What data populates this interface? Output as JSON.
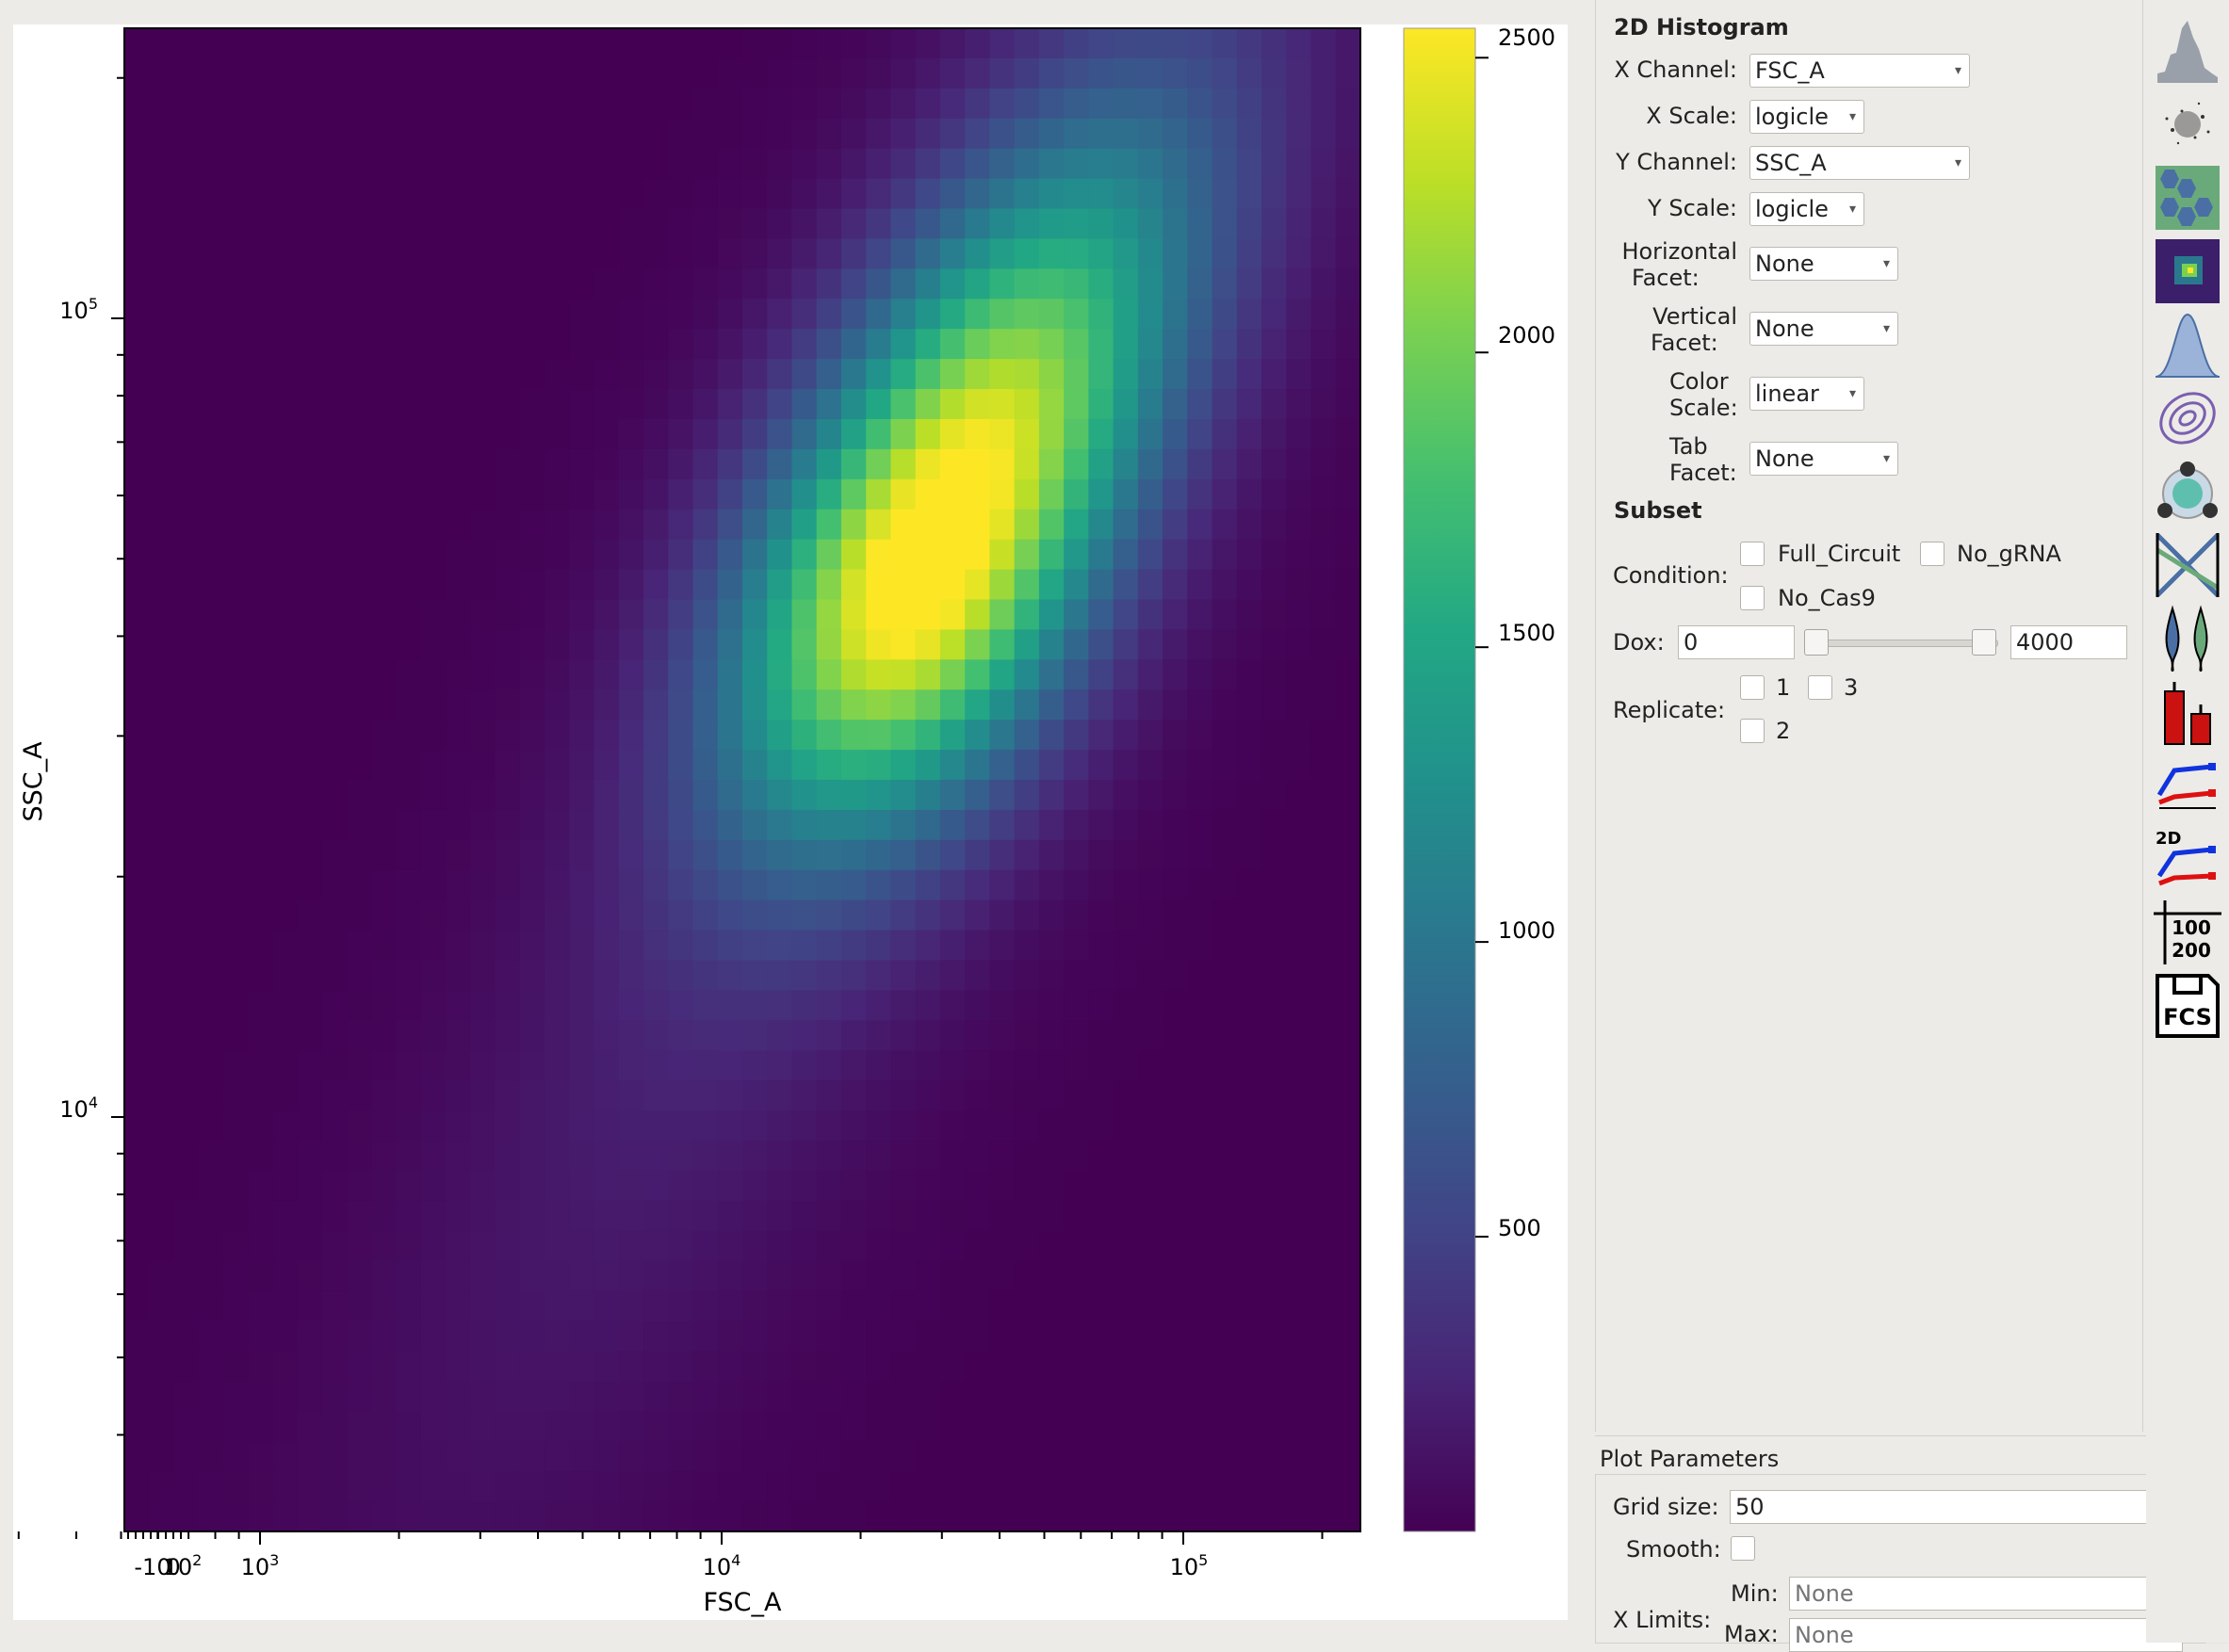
{
  "plot": {
    "xlabel": "FSC_A",
    "ylabel": "SSC_A",
    "x_tick_labels": [
      "-10",
      "0",
      "10",
      "10",
      "10",
      "10"
    ],
    "x_tick_sups": [
      "",
      "",
      "2",
      "3",
      "4",
      "5"
    ],
    "y_tick_labels": [
      "10",
      "10"
    ],
    "y_tick_sups": [
      "4",
      "5"
    ],
    "colorbar_ticks": [
      "500",
      "1000",
      "1500",
      "2000",
      "2500"
    ]
  },
  "chart_data": {
    "type": "heatmap",
    "title": "",
    "xlabel": "FSC_A",
    "ylabel": "SSC_A",
    "x_scale": "logicle",
    "y_scale": "logicle",
    "grid_size": 50,
    "colormap": "viridis",
    "colorbar_range": [
      0,
      2550
    ],
    "colorbar_ticks": [
      500,
      1000,
      1500,
      2000,
      2500
    ],
    "x_ticks": [
      "-10",
      "0",
      "10^2",
      "10^3",
      "10^4",
      "10^5"
    ],
    "y_ticks": [
      "10^4",
      "10^5"
    ],
    "peak": {
      "x": 28000,
      "y": 50000,
      "count": 2550
    },
    "density_ridge": "diagonal band rising from ~5,000 FSC_A / ~4,000 SSC_A to ~150,000 FSC_A / ~200,000 SSC_A",
    "legend": "colorbar-right"
  },
  "panel": {
    "section_title": "2D Histogram",
    "x_channel_label": "X Channel:",
    "x_channel_value": "FSC_A",
    "x_scale_label": "X Scale:",
    "x_scale_value": "logicle",
    "y_channel_label": "Y Channel:",
    "y_channel_value": "SSC_A",
    "y_scale_label": "Y Scale:",
    "y_scale_value": "logicle",
    "hfacet_label_1": "Horizontal",
    "hfacet_label_2": "Facet:",
    "hfacet_value": "None",
    "vfacet_label_1": "Vertical",
    "vfacet_label_2": "Facet:",
    "vfacet_value": "None",
    "cscale_label_1": "Color",
    "cscale_label_2": "Scale:",
    "cscale_value": "linear",
    "tabfacet_label_1": "Tab",
    "tabfacet_label_2": "Facet:",
    "tabfacet_value": "None",
    "subset_title": "Subset",
    "condition_label": "Condition:",
    "conditions": [
      "Full_Circuit",
      "No_gRNA",
      "No_Cas9"
    ],
    "dox_label": "Dox:",
    "dox_min": "0",
    "dox_max": "4000",
    "replicate_label": "Replicate:",
    "replicates": [
      "1",
      "3",
      "2"
    ]
  },
  "params": {
    "title": "Plot Parameters",
    "grid_label": "Grid size:",
    "grid_value": "50",
    "smooth_label": "Smooth:",
    "xlimits_label": "X Limits:",
    "min_label": "Min:",
    "min_placeholder": "None",
    "max_label": "Max:",
    "max_placeholder": "None"
  },
  "toolbar": {
    "tools": [
      "histogram-icon",
      "scatterplot-icon",
      "hexbin-icon",
      "histogram-2d-icon",
      "kde-icon",
      "kde-2d-icon",
      "violin-radviz-icon",
      "parallel-coords-icon",
      "violin-icon",
      "bar-chart-icon",
      "stats-1d-icon",
      "stats-2d-icon",
      "table-icon",
      "export-fcs-icon"
    ],
    "table_top": "100",
    "table_bottom": "200",
    "stats2d_label": "2D",
    "fcs_label": "FCS"
  },
  "colors": {
    "viridis_low": "#440154",
    "viridis_high": "#fde725"
  }
}
